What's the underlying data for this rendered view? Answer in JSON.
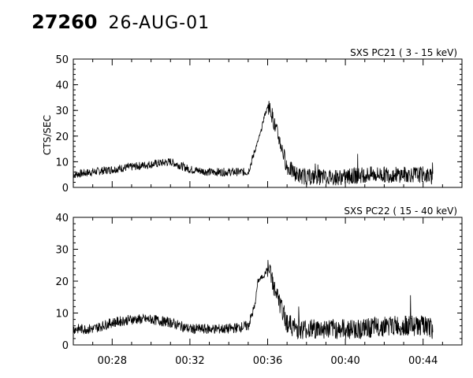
{
  "header": {
    "event_id": "27260",
    "date": "26-AUG-01"
  },
  "chart_data": [
    {
      "type": "line",
      "title": "SXS PC21  (  3 - 15 keV)",
      "ylabel": "CTS/SEC",
      "xlim": [
        "00:26:00",
        "00:46:00"
      ],
      "ylim": [
        0,
        50
      ],
      "yticks": [
        0,
        10,
        20,
        30,
        40,
        50
      ],
      "x_tick_labels": [],
      "series": [
        {
          "x": [
            "00:26:00",
            "00:27:00",
            "00:28:00",
            "00:29:00",
            "00:30:00",
            "00:31:00",
            "00:32:00",
            "00:33:00",
            "00:34:00",
            "00:34:30",
            "00:35:00",
            "00:35:20",
            "00:35:40",
            "00:35:50",
            "00:36:00",
            "00:36:10",
            "00:36:20",
            "00:36:40",
            "00:37:00",
            "00:37:30",
            "00:38:00",
            "00:39:00",
            "00:40:00",
            "00:41:00",
            "00:42:00",
            "00:43:00",
            "00:44:00",
            "00:44:30"
          ],
          "y": [
            5,
            6,
            7,
            8,
            9,
            10,
            7,
            6,
            6,
            6,
            6,
            14,
            22,
            28,
            31,
            30,
            25,
            17,
            8,
            5,
            4,
            4,
            4,
            5,
            5,
            5,
            5,
            4
          ]
        }
      ]
    },
    {
      "type": "line",
      "title": "SXS PC22  ( 15 - 40 keV)",
      "ylabel": "",
      "xlim": [
        "00:26:00",
        "00:46:00"
      ],
      "ylim": [
        0,
        40
      ],
      "yticks": [
        0,
        10,
        20,
        30,
        40
      ],
      "x_tick_labels": [
        "00:28",
        "00:32",
        "00:36",
        "00:40",
        "00:44"
      ],
      "series": [
        {
          "x": [
            "00:26:00",
            "00:27:00",
            "00:28:00",
            "00:29:00",
            "00:30:00",
            "00:31:00",
            "00:32:00",
            "00:33:00",
            "00:34:00",
            "00:35:00",
            "00:35:20",
            "00:35:30",
            "00:35:50",
            "00:36:00",
            "00:36:10",
            "00:36:20",
            "00:36:40",
            "00:37:00",
            "00:37:30",
            "00:38:00",
            "00:39:00",
            "00:40:00",
            "00:41:00",
            "00:42:00",
            "00:43:00",
            "00:44:00",
            "00:44:30"
          ],
          "y": [
            5,
            5,
            7,
            8,
            8,
            7,
            5,
            5,
            5,
            6,
            12,
            20,
            22,
            24,
            22,
            18,
            12,
            7,
            5,
            5,
            5,
            5,
            5,
            6,
            6,
            6,
            5
          ]
        }
      ]
    }
  ]
}
